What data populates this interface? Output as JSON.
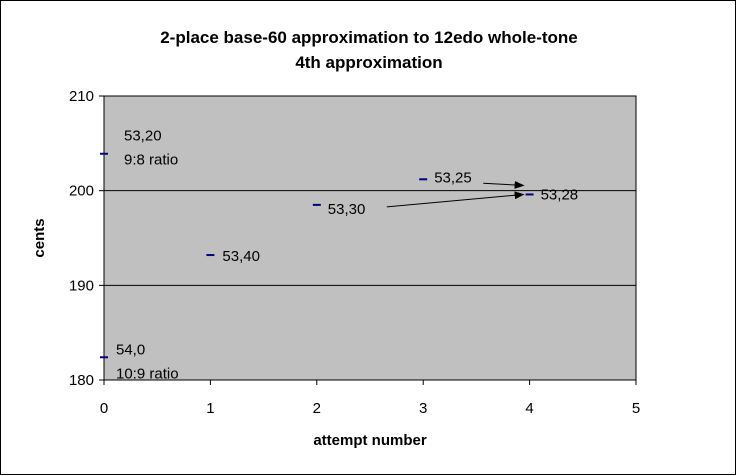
{
  "chart_data": {
    "type": "scatter",
    "title_lines": [
      "2-place base-60 approximation to 12edo whole-tone",
      "4th approximation"
    ],
    "xlabel": "attempt number",
    "ylabel": "cents",
    "xlim": [
      0,
      5
    ],
    "ylim": [
      180,
      210
    ],
    "x_ticks": [
      "0",
      "1",
      "2",
      "3",
      "4",
      "5"
    ],
    "y_ticks": [
      "180",
      "190",
      "200",
      "210"
    ],
    "grid": "horizontal major gridlines",
    "legend": "none",
    "colors": {
      "plot_bg": "#c0c0c0",
      "marker": "#000080",
      "gridline": "#000000"
    },
    "points": [
      {
        "x": 0,
        "y": 203.9,
        "label": [
          "53,20",
          "9:8 ratio"
        ]
      },
      {
        "x": 0,
        "y": 182.4,
        "label": [
          "54,0",
          "10:9 ratio"
        ]
      },
      {
        "x": 1,
        "y": 193.2,
        "label": [
          "53,40"
        ]
      },
      {
        "x": 2,
        "y": 198.5,
        "label": [
          "53,30"
        ]
      },
      {
        "x": 3,
        "y": 201.2,
        "label": [
          "53,25"
        ]
      },
      {
        "x": 4,
        "y": 199.6,
        "label": [
          "53,28"
        ]
      }
    ],
    "arrows": [
      {
        "from_point": 4,
        "to_point": 5
      },
      {
        "from_point": 3,
        "to_point": 5
      }
    ]
  }
}
